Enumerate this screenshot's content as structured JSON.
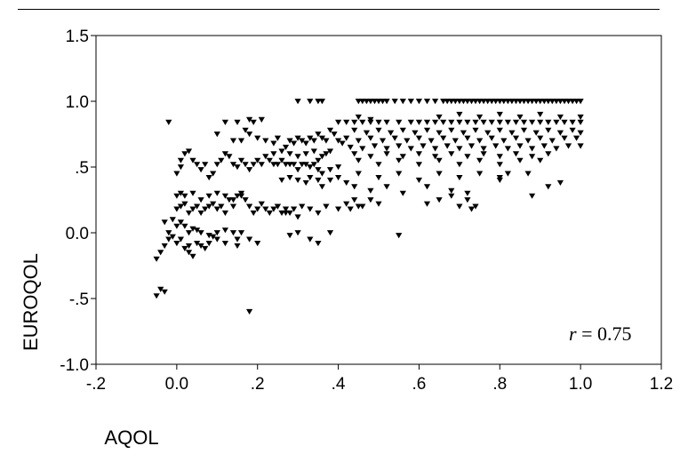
{
  "chart_data": {
    "type": "scatter",
    "xlabel": "AQOL",
    "ylabel": "EUROQOL",
    "xlim": [
      -0.2,
      1.2
    ],
    "ylim": [
      -1.0,
      1.5
    ],
    "xticks": [
      {
        "v": -0.2,
        "label": "-.2"
      },
      {
        "v": 0.0,
        "label": "0.0"
      },
      {
        "v": 0.2,
        "label": ".2"
      },
      {
        "v": 0.4,
        "label": ".4"
      },
      {
        "v": 0.6,
        "label": ".6"
      },
      {
        "v": 0.8,
        "label": ".8"
      },
      {
        "v": 1.0,
        "label": "1.0"
      },
      {
        "v": 1.2,
        "label": "1.2"
      }
    ],
    "yticks": [
      {
        "v": -1.0,
        "label": "-1.0"
      },
      {
        "v": -0.5,
        "label": "-.5"
      },
      {
        "v": 0.0,
        "label": "0.0"
      },
      {
        "v": 0.5,
        "label": ".5"
      },
      {
        "v": 1.0,
        "label": "1.0"
      },
      {
        "v": 1.5,
        "label": "1.5"
      }
    ],
    "annotation": {
      "var": "r",
      "text": " = 0.75"
    },
    "marker": "triangle-down",
    "marker_color": "#000000",
    "grid": false,
    "points": [
      [
        -0.04,
        -0.43
      ],
      [
        -0.03,
        -0.45
      ],
      [
        -0.05,
        -0.48
      ],
      [
        -0.05,
        -0.2
      ],
      [
        -0.04,
        -0.15
      ],
      [
        -0.03,
        -0.1
      ],
      [
        -0.02,
        -0.05
      ],
      [
        -0.02,
        0.0
      ],
      [
        -0.03,
        0.08
      ],
      [
        -0.01,
        0.1
      ],
      [
        -0.01,
        -0.03
      ],
      [
        0.0,
        -0.08
      ],
      [
        0.01,
        -0.05
      ],
      [
        0.02,
        -0.12
      ],
      [
        0.03,
        -0.1
      ],
      [
        0.03,
        -0.15
      ],
      [
        0.04,
        -0.18
      ],
      [
        0.05,
        -0.08
      ],
      [
        0.06,
        -0.1
      ],
      [
        0.07,
        -0.12
      ],
      [
        0.08,
        -0.08
      ],
      [
        0.1,
        -0.05
      ],
      [
        0.12,
        -0.08
      ],
      [
        0.15,
        -0.05
      ],
      [
        0.0,
        0.05
      ],
      [
        0.01,
        0.08
      ],
      [
        0.02,
        0.05
      ],
      [
        0.03,
        0.0
      ],
      [
        0.04,
        0.03
      ],
      [
        0.05,
        0.02
      ],
      [
        0.06,
        0.0
      ],
      [
        0.08,
        -0.02
      ],
      [
        0.09,
        -0.03
      ],
      [
        0.1,
        0.0
      ],
      [
        0.12,
        0.02
      ],
      [
        0.14,
        0.0
      ],
      [
        0.16,
        0.0
      ],
      [
        0.18,
        -0.05
      ],
      [
        0.2,
        -0.08
      ],
      [
        0.15,
        -0.1
      ],
      [
        0.0,
        0.18
      ],
      [
        0.01,
        0.2
      ],
      [
        0.02,
        0.22
      ],
      [
        0.03,
        0.15
      ],
      [
        0.04,
        0.18
      ],
      [
        0.05,
        0.2
      ],
      [
        0.06,
        0.15
      ],
      [
        0.07,
        0.18
      ],
      [
        0.08,
        0.2
      ],
      [
        0.09,
        0.22
      ],
      [
        0.1,
        0.18
      ],
      [
        0.11,
        0.2
      ],
      [
        0.12,
        0.15
      ],
      [
        0.13,
        0.25
      ],
      [
        0.14,
        0.2
      ],
      [
        0.15,
        0.28
      ],
      [
        0.16,
        0.3
      ],
      [
        0.17,
        0.25
      ],
      [
        0.18,
        0.2
      ],
      [
        0.19,
        0.15
      ],
      [
        0.2,
        0.18
      ],
      [
        0.21,
        0.22
      ],
      [
        0.22,
        0.18
      ],
      [
        0.23,
        0.15
      ],
      [
        0.24,
        0.18
      ],
      [
        0.25,
        0.2
      ],
      [
        0.26,
        0.15
      ],
      [
        0.27,
        0.18
      ],
      [
        0.28,
        0.15
      ],
      [
        0.3,
        0.12
      ],
      [
        0.0,
        0.28
      ],
      [
        0.01,
        0.3
      ],
      [
        0.02,
        0.28
      ],
      [
        0.04,
        0.3
      ],
      [
        0.06,
        0.25
      ],
      [
        0.08,
        0.28
      ],
      [
        0.1,
        0.3
      ],
      [
        0.12,
        0.28
      ],
      [
        0.14,
        0.25
      ],
      [
        0.16,
        0.28
      ],
      [
        0.0,
        0.45
      ],
      [
        0.01,
        0.5
      ],
      [
        0.01,
        0.55
      ],
      [
        0.02,
        0.6
      ],
      [
        0.03,
        0.62
      ],
      [
        0.04,
        0.55
      ],
      [
        0.05,
        0.52
      ],
      [
        0.06,
        0.48
      ],
      [
        0.07,
        0.52
      ],
      [
        0.08,
        0.42
      ],
      [
        0.09,
        0.45
      ],
      [
        0.1,
        0.52
      ],
      [
        0.11,
        0.55
      ],
      [
        0.12,
        0.6
      ],
      [
        0.13,
        0.58
      ],
      [
        0.14,
        0.52
      ],
      [
        0.15,
        0.5
      ],
      [
        0.16,
        0.55
      ],
      [
        0.17,
        0.52
      ],
      [
        0.18,
        0.48
      ],
      [
        0.19,
        0.52
      ],
      [
        0.2,
        0.55
      ],
      [
        0.21,
        0.52
      ],
      [
        0.22,
        0.58
      ],
      [
        0.23,
        0.55
      ],
      [
        0.24,
        0.52
      ],
      [
        0.25,
        0.52
      ],
      [
        0.26,
        0.55
      ],
      [
        0.27,
        0.52
      ],
      [
        0.28,
        0.52
      ],
      [
        -0.02,
        0.84
      ],
      [
        0.12,
        0.84
      ],
      [
        0.15,
        0.84
      ],
      [
        0.18,
        0.86
      ],
      [
        0.19,
        0.84
      ],
      [
        0.21,
        0.86
      ],
      [
        0.1,
        0.75
      ],
      [
        0.14,
        0.7
      ],
      [
        0.16,
        0.7
      ],
      [
        0.17,
        0.78
      ],
      [
        0.18,
        0.75
      ],
      [
        0.2,
        0.72
      ],
      [
        0.22,
        0.7
      ],
      [
        0.24,
        0.68
      ],
      [
        0.25,
        0.72
      ],
      [
        0.27,
        0.65
      ],
      [
        0.28,
        0.7
      ],
      [
        0.29,
        0.68
      ],
      [
        0.3,
        0.72
      ],
      [
        0.31,
        0.7
      ],
      [
        0.32,
        0.68
      ],
      [
        0.33,
        0.72
      ],
      [
        0.34,
        0.7
      ],
      [
        0.35,
        0.75
      ],
      [
        0.36,
        0.72
      ],
      [
        0.37,
        0.7
      ],
      [
        0.38,
        0.78
      ],
      [
        0.39,
        0.75
      ],
      [
        0.4,
        0.7
      ],
      [
        0.41,
        0.68
      ],
      [
        0.24,
        0.6
      ],
      [
        0.26,
        0.62
      ],
      [
        0.28,
        0.6
      ],
      [
        0.3,
        0.58
      ],
      [
        0.32,
        0.6
      ],
      [
        0.34,
        0.62
      ],
      [
        0.35,
        0.55
      ],
      [
        0.36,
        0.58
      ],
      [
        0.37,
        0.6
      ],
      [
        0.38,
        0.62
      ],
      [
        0.29,
        0.52
      ],
      [
        0.3,
        0.48
      ],
      [
        0.31,
        0.52
      ],
      [
        0.32,
        0.52
      ],
      [
        0.33,
        0.5
      ],
      [
        0.34,
        0.52
      ],
      [
        0.35,
        0.48
      ],
      [
        0.36,
        0.45
      ],
      [
        0.38,
        0.48
      ],
      [
        0.4,
        0.5
      ],
      [
        0.26,
        0.4
      ],
      [
        0.28,
        0.42
      ],
      [
        0.3,
        0.4
      ],
      [
        0.32,
        0.38
      ],
      [
        0.33,
        0.42
      ],
      [
        0.35,
        0.4
      ],
      [
        0.36,
        0.35
      ],
      [
        0.38,
        0.4
      ],
      [
        0.4,
        0.42
      ],
      [
        0.42,
        0.38
      ],
      [
        0.25,
        0.2
      ],
      [
        0.27,
        0.15
      ],
      [
        0.29,
        0.18
      ],
      [
        0.31,
        0.2
      ],
      [
        0.33,
        0.18
      ],
      [
        0.35,
        0.15
      ],
      [
        0.37,
        0.2
      ],
      [
        0.4,
        0.18
      ],
      [
        0.42,
        0.22
      ],
      [
        0.45,
        0.2
      ],
      [
        0.3,
        0.0
      ],
      [
        0.33,
        -0.05
      ],
      [
        0.35,
        -0.08
      ],
      [
        0.28,
        -0.02
      ],
      [
        0.38,
        0.0
      ],
      [
        0.55,
        -0.02
      ],
      [
        0.18,
        -0.6
      ],
      [
        0.3,
        1.0
      ],
      [
        0.33,
        1.0
      ],
      [
        0.35,
        1.0
      ],
      [
        0.36,
        1.0
      ],
      [
        0.45,
        1.0
      ],
      [
        0.46,
        1.0
      ],
      [
        0.47,
        1.0
      ],
      [
        0.48,
        1.0
      ],
      [
        0.49,
        1.0
      ],
      [
        0.5,
        1.0
      ],
      [
        0.51,
        1.0
      ],
      [
        0.52,
        1.0
      ],
      [
        0.54,
        1.0
      ],
      [
        0.56,
        1.0
      ],
      [
        0.58,
        1.0
      ],
      [
        0.6,
        1.0
      ],
      [
        0.62,
        1.0
      ],
      [
        0.64,
        1.0
      ],
      [
        0.66,
        1.0
      ],
      [
        0.67,
        1.0
      ],
      [
        0.68,
        1.0
      ],
      [
        0.69,
        1.0
      ],
      [
        0.7,
        1.0
      ],
      [
        0.71,
        1.0
      ],
      [
        0.72,
        1.0
      ],
      [
        0.73,
        1.0
      ],
      [
        0.74,
        1.0
      ],
      [
        0.75,
        1.0
      ],
      [
        0.76,
        1.0
      ],
      [
        0.77,
        1.0
      ],
      [
        0.78,
        1.0
      ],
      [
        0.79,
        1.0
      ],
      [
        0.8,
        1.0
      ],
      [
        0.81,
        1.0
      ],
      [
        0.82,
        1.0
      ],
      [
        0.83,
        1.0
      ],
      [
        0.84,
        1.0
      ],
      [
        0.85,
        1.0
      ],
      [
        0.86,
        1.0
      ],
      [
        0.87,
        1.0
      ],
      [
        0.88,
        1.0
      ],
      [
        0.89,
        1.0
      ],
      [
        0.9,
        1.0
      ],
      [
        0.91,
        1.0
      ],
      [
        0.92,
        1.0
      ],
      [
        0.93,
        1.0
      ],
      [
        0.94,
        1.0
      ],
      [
        0.95,
        1.0
      ],
      [
        0.96,
        1.0
      ],
      [
        0.97,
        1.0
      ],
      [
        0.98,
        1.0
      ],
      [
        0.99,
        1.0
      ],
      [
        1.0,
        1.0
      ],
      [
        0.4,
        0.84
      ],
      [
        0.42,
        0.84
      ],
      [
        0.44,
        0.84
      ],
      [
        0.46,
        0.84
      ],
      [
        0.48,
        0.84
      ],
      [
        0.5,
        0.84
      ],
      [
        0.52,
        0.84
      ],
      [
        0.55,
        0.84
      ],
      [
        0.58,
        0.84
      ],
      [
        0.6,
        0.84
      ],
      [
        0.62,
        0.84
      ],
      [
        0.64,
        0.84
      ],
      [
        0.66,
        0.84
      ],
      [
        0.68,
        0.84
      ],
      [
        0.7,
        0.84
      ],
      [
        0.72,
        0.84
      ],
      [
        0.74,
        0.84
      ],
      [
        0.76,
        0.84
      ],
      [
        0.78,
        0.84
      ],
      [
        0.8,
        0.84
      ],
      [
        0.82,
        0.84
      ],
      [
        0.84,
        0.84
      ],
      [
        0.86,
        0.84
      ],
      [
        0.88,
        0.84
      ],
      [
        0.9,
        0.84
      ],
      [
        0.92,
        0.84
      ],
      [
        0.94,
        0.84
      ],
      [
        0.96,
        0.84
      ],
      [
        0.98,
        0.84
      ],
      [
        1.0,
        0.84
      ],
      [
        0.45,
        0.88
      ],
      [
        0.48,
        0.86
      ],
      [
        0.65,
        0.88
      ],
      [
        0.7,
        0.9
      ],
      [
        0.75,
        0.88
      ],
      [
        0.8,
        0.9
      ],
      [
        0.85,
        0.88
      ],
      [
        0.9,
        0.9
      ],
      [
        0.95,
        0.88
      ],
      [
        1.0,
        0.88
      ],
      [
        0.44,
        0.78
      ],
      [
        0.47,
        0.76
      ],
      [
        0.5,
        0.78
      ],
      [
        0.53,
        0.76
      ],
      [
        0.56,
        0.78
      ],
      [
        0.59,
        0.76
      ],
      [
        0.62,
        0.78
      ],
      [
        0.65,
        0.76
      ],
      [
        0.68,
        0.78
      ],
      [
        0.71,
        0.76
      ],
      [
        0.74,
        0.78
      ],
      [
        0.77,
        0.76
      ],
      [
        0.8,
        0.78
      ],
      [
        0.83,
        0.76
      ],
      [
        0.86,
        0.78
      ],
      [
        0.89,
        0.76
      ],
      [
        0.92,
        0.78
      ],
      [
        0.95,
        0.76
      ],
      [
        0.98,
        0.78
      ],
      [
        1.0,
        0.76
      ],
      [
        0.42,
        0.72
      ],
      [
        0.45,
        0.7
      ],
      [
        0.48,
        0.72
      ],
      [
        0.51,
        0.7
      ],
      [
        0.54,
        0.72
      ],
      [
        0.57,
        0.7
      ],
      [
        0.6,
        0.72
      ],
      [
        0.63,
        0.7
      ],
      [
        0.66,
        0.72
      ],
      [
        0.69,
        0.7
      ],
      [
        0.72,
        0.72
      ],
      [
        0.75,
        0.7
      ],
      [
        0.78,
        0.72
      ],
      [
        0.81,
        0.7
      ],
      [
        0.84,
        0.72
      ],
      [
        0.87,
        0.7
      ],
      [
        0.9,
        0.72
      ],
      [
        0.93,
        0.7
      ],
      [
        0.96,
        0.72
      ],
      [
        0.99,
        0.72
      ],
      [
        0.43,
        0.65
      ],
      [
        0.46,
        0.64
      ],
      [
        0.49,
        0.66
      ],
      [
        0.52,
        0.64
      ],
      [
        0.55,
        0.66
      ],
      [
        0.58,
        0.64
      ],
      [
        0.61,
        0.66
      ],
      [
        0.64,
        0.64
      ],
      [
        0.67,
        0.66
      ],
      [
        0.7,
        0.64
      ],
      [
        0.73,
        0.66
      ],
      [
        0.76,
        0.64
      ],
      [
        0.79,
        0.66
      ],
      [
        0.82,
        0.64
      ],
      [
        0.85,
        0.66
      ],
      [
        0.88,
        0.64
      ],
      [
        0.91,
        0.66
      ],
      [
        0.94,
        0.64
      ],
      [
        0.97,
        0.66
      ],
      [
        1.0,
        0.66
      ],
      [
        0.44,
        0.6
      ],
      [
        0.48,
        0.58
      ],
      [
        0.52,
        0.6
      ],
      [
        0.56,
        0.58
      ],
      [
        0.6,
        0.6
      ],
      [
        0.64,
        0.58
      ],
      [
        0.68,
        0.6
      ],
      [
        0.72,
        0.58
      ],
      [
        0.76,
        0.6
      ],
      [
        0.8,
        0.58
      ],
      [
        0.84,
        0.6
      ],
      [
        0.88,
        0.58
      ],
      [
        0.92,
        0.6
      ],
      [
        0.45,
        0.55
      ],
      [
        0.5,
        0.52
      ],
      [
        0.55,
        0.55
      ],
      [
        0.6,
        0.52
      ],
      [
        0.65,
        0.55
      ],
      [
        0.7,
        0.52
      ],
      [
        0.75,
        0.55
      ],
      [
        0.8,
        0.52
      ],
      [
        0.85,
        0.55
      ],
      [
        0.9,
        0.55
      ],
      [
        0.45,
        0.45
      ],
      [
        0.5,
        0.42
      ],
      [
        0.55,
        0.45
      ],
      [
        0.6,
        0.4
      ],
      [
        0.65,
        0.45
      ],
      [
        0.7,
        0.42
      ],
      [
        0.75,
        0.45
      ],
      [
        0.8,
        0.4
      ],
      [
        0.82,
        0.45
      ],
      [
        0.87,
        0.45
      ],
      [
        0.44,
        0.35
      ],
      [
        0.48,
        0.32
      ],
      [
        0.52,
        0.35
      ],
      [
        0.56,
        0.3
      ],
      [
        0.62,
        0.35
      ],
      [
        0.68,
        0.32
      ],
      [
        0.72,
        0.3
      ],
      [
        0.92,
        0.35
      ],
      [
        0.95,
        0.38
      ],
      [
        0.88,
        0.28
      ],
      [
        0.8,
        0.42
      ],
      [
        0.44,
        0.25
      ],
      [
        0.46,
        0.2
      ],
      [
        0.48,
        0.25
      ],
      [
        0.5,
        0.22
      ],
      [
        0.43,
        0.18
      ],
      [
        0.65,
        0.25
      ],
      [
        0.7,
        0.2
      ],
      [
        0.72,
        0.25
      ],
      [
        0.68,
        0.28
      ],
      [
        0.74,
        0.2
      ],
      [
        0.73,
        0.18
      ],
      [
        0.62,
        0.22
      ]
    ]
  }
}
